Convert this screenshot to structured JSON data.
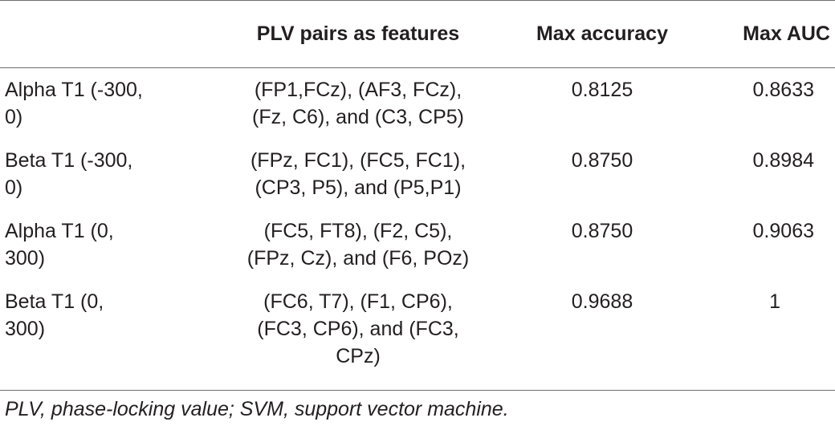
{
  "table": {
    "headers": [
      "",
      "PLV pairs as features",
      "Max accuracy",
      "Max AUC"
    ],
    "rows": [
      {
        "label": [
          "Alpha T1 (-300,",
          "0)"
        ],
        "features": [
          "(FP1,FCz), (AF3, FCz),",
          "(Fz, C6), and (C3, CP5)"
        ],
        "accuracy": "0.8125",
        "auc": "0.8633"
      },
      {
        "label": [
          "Beta T1 (-300,",
          "0)"
        ],
        "features": [
          "(FPz, FC1), (FC5, FC1),",
          "(CP3, P5), and (P5,P1)"
        ],
        "accuracy": "0.8750",
        "auc": "0.8984"
      },
      {
        "label": [
          "Alpha T1 (0,",
          "300)"
        ],
        "features": [
          "(FC5, FT8), (F2, C5),",
          "(FPz, Cz), and (F6, POz)"
        ],
        "accuracy": "0.8750",
        "auc": "0.9063"
      },
      {
        "label": [
          "Beta T1 (0,",
          "300)"
        ],
        "features": [
          "(FC6, T7), (F1, CP6),",
          "(FC3, CP6), and (FC3,",
          "CPz)"
        ],
        "accuracy": "0.9688",
        "auc": "1"
      }
    ]
  },
  "footnote": "PLV, phase-locking value; SVM, support vector machine."
}
